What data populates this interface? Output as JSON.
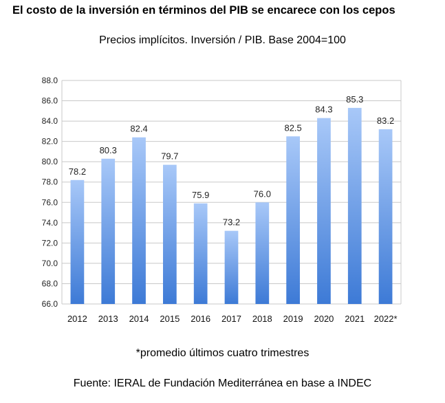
{
  "chart_data": {
    "type": "bar",
    "title": "El costo de la inversión en términos del PIB se encarece con los cepos",
    "subtitle": "Precios implícitos. Inversión / PIB. Base 2004=100",
    "categories": [
      "2012",
      "2013",
      "2014",
      "2015",
      "2016",
      "2017",
      "2018",
      "2019",
      "2020",
      "2021",
      "2022*"
    ],
    "values": [
      78.2,
      80.3,
      82.4,
      79.7,
      75.9,
      73.2,
      76.0,
      82.5,
      84.3,
      85.3,
      83.2
    ],
    "value_labels": [
      "78.2",
      "80.3",
      "82.4",
      "79.7",
      "75.9",
      "73.2",
      "76.0",
      "82.5",
      "84.3",
      "85.3",
      "83.2"
    ],
    "ylim": [
      66.0,
      88.0
    ],
    "yticks": [
      "66.0",
      "68.0",
      "70.0",
      "72.0",
      "74.0",
      "76.0",
      "78.0",
      "80.0",
      "82.0",
      "84.0",
      "86.0",
      "88.0"
    ],
    "grid": true,
    "legend": "none",
    "bar_color_top": "#a8c8f8",
    "bar_color_bottom": "#3d7ad6",
    "note": "*promedio últimos cuatro trimestres",
    "source": "Fuente: IERAL de Fundación Mediterránea en base a INDEC"
  }
}
